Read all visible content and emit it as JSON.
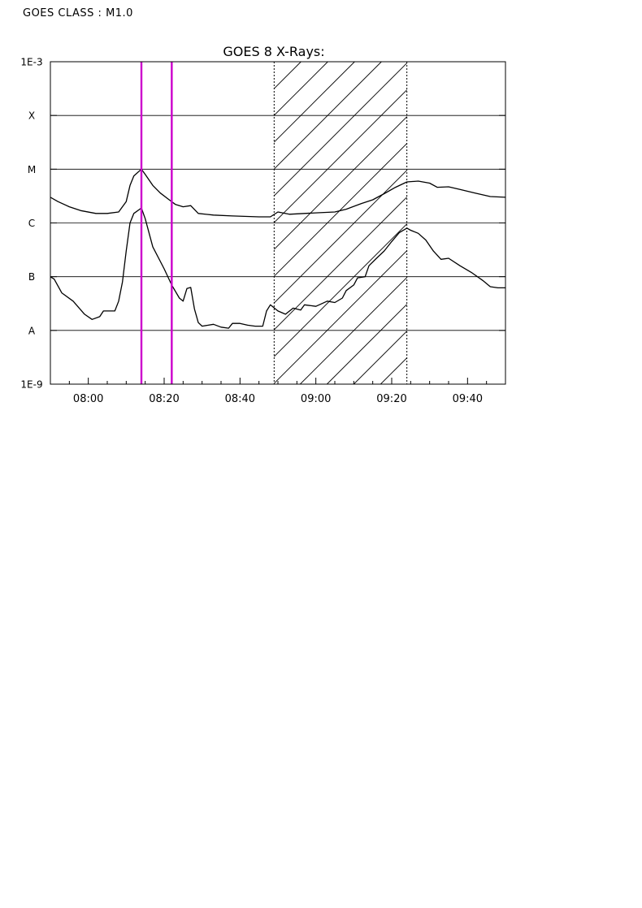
{
  "header": {
    "goes_class_label": "GOES CLASS : M1.0"
  },
  "chart_data": {
    "type": "line",
    "title": "GOES 8 X-Rays:",
    "xlabel": "",
    "ylabel": "",
    "y_scale": "log",
    "ylim": [
      1e-09,
      0.001
    ],
    "x_range": [
      "07:50",
      "09:50"
    ],
    "x_ticks": [
      "08:00",
      "08:20",
      "08:40",
      "09:00",
      "09:20",
      "09:40"
    ],
    "y_tick_labels": [
      {
        "label": "1E-3",
        "value": 0.001
      },
      {
        "label": "X",
        "value": 0.0001
      },
      {
        "label": "M",
        "value": 1e-05
      },
      {
        "label": "C",
        "value": 1e-06
      },
      {
        "label": "B",
        "value": 1e-07
      },
      {
        "label": "A",
        "value": 1e-08
      },
      {
        "label": "1E-9",
        "value": 1e-09
      }
    ],
    "grid": "horizontal at class boundaries",
    "markers": [
      {
        "time": "08:14",
        "color": "#cc00cc"
      },
      {
        "time": "08:22",
        "color": "#cc00cc"
      }
    ],
    "shaded_interval": {
      "start": "08:49",
      "end": "09:24"
    },
    "series": [
      {
        "points": [
          [
            "07:50",
            3e-06
          ],
          [
            "07:52",
            2.5e-06
          ],
          [
            "07:55",
            2e-06
          ],
          [
            "07:58",
            1.7e-06
          ],
          [
            "08:02",
            1.5e-06
          ],
          [
            "08:05",
            1.5e-06
          ],
          [
            "08:08",
            1.6e-06
          ],
          [
            "08:10",
            2.5e-06
          ],
          [
            "08:11",
            5e-06
          ],
          [
            "08:12",
            7.5e-06
          ],
          [
            "08:14",
            1e-05
          ],
          [
            "08:15",
            8e-06
          ],
          [
            "08:17",
            5e-06
          ],
          [
            "08:19",
            3.6e-06
          ],
          [
            "08:21",
            2.8e-06
          ],
          [
            "08:23",
            2.2e-06
          ],
          [
            "08:25",
            2e-06
          ],
          [
            "08:27",
            2.1e-06
          ],
          [
            "08:29",
            1.5e-06
          ],
          [
            "08:33",
            1.4e-06
          ],
          [
            "08:38",
            1.35e-06
          ],
          [
            "08:45",
            1.3e-06
          ],
          [
            "08:48",
            1.3e-06
          ],
          [
            "08:50",
            1.6e-06
          ],
          [
            "08:53",
            1.45e-06
          ],
          [
            "08:57",
            1.5e-06
          ],
          [
            "09:01",
            1.55e-06
          ],
          [
            "09:05",
            1.6e-06
          ],
          [
            "09:08",
            1.8e-06
          ],
          [
            "09:12",
            2.3e-06
          ],
          [
            "09:15",
            2.7e-06
          ],
          [
            "09:18",
            3.5e-06
          ],
          [
            "09:21",
            4.6e-06
          ],
          [
            "09:24",
            5.8e-06
          ],
          [
            "09:27",
            6e-06
          ],
          [
            "09:30",
            5.5e-06
          ],
          [
            "09:32",
            4.6e-06
          ],
          [
            "09:35",
            4.7e-06
          ],
          [
            "09:38",
            4.2e-06
          ],
          [
            "09:42",
            3.6e-06
          ],
          [
            "09:46",
            3.1e-06
          ],
          [
            "09:50",
            3e-06
          ]
        ]
      },
      {
        "points": [
          [
            "07:50",
            1e-07
          ],
          [
            "07:51",
            9e-08
          ],
          [
            "07:53",
            5e-08
          ],
          [
            "07:56",
            3.5e-08
          ],
          [
            "07:59",
            2e-08
          ],
          [
            "08:01",
            1.6e-08
          ],
          [
            "08:03",
            1.8e-08
          ],
          [
            "08:04",
            2.3e-08
          ],
          [
            "08:07",
            2.3e-08
          ],
          [
            "08:08",
            3.5e-08
          ],
          [
            "08:09",
            8e-08
          ],
          [
            "08:10",
            3e-07
          ],
          [
            "08:11",
            1e-06
          ],
          [
            "08:12",
            1.5e-06
          ],
          [
            "08:14",
            1.9e-06
          ],
          [
            "08:15",
            1.2e-06
          ],
          [
            "08:17",
            3.6e-07
          ],
          [
            "08:20",
            1.4e-07
          ],
          [
            "08:22",
            7e-08
          ],
          [
            "08:24",
            4e-08
          ],
          [
            "08:25",
            3.5e-08
          ],
          [
            "08:26",
            6e-08
          ],
          [
            "08:27",
            6.3e-08
          ],
          [
            "08:28",
            2.5e-08
          ],
          [
            "08:29",
            1.4e-08
          ],
          [
            "08:30",
            1.2e-08
          ],
          [
            "08:33",
            1.3e-08
          ],
          [
            "08:35",
            1.15e-08
          ],
          [
            "08:37",
            1.1e-08
          ],
          [
            "08:38",
            1.35e-08
          ],
          [
            "08:40",
            1.35e-08
          ],
          [
            "08:42",
            1.25e-08
          ],
          [
            "08:44",
            1.2e-08
          ],
          [
            "08:46",
            1.2e-08
          ],
          [
            "08:47",
            2.3e-08
          ],
          [
            "08:48",
            3e-08
          ],
          [
            "08:50",
            2.3e-08
          ],
          [
            "08:52",
            2e-08
          ],
          [
            "08:54",
            2.6e-08
          ],
          [
            "08:56",
            2.4e-08
          ],
          [
            "08:57",
            3e-08
          ],
          [
            "09:00",
            2.8e-08
          ],
          [
            "09:03",
            3.5e-08
          ],
          [
            "09:05",
            3.3e-08
          ],
          [
            "09:07",
            4e-08
          ],
          [
            "09:08",
            5.5e-08
          ],
          [
            "09:10",
            7e-08
          ],
          [
            "09:11",
            9.5e-08
          ],
          [
            "09:13",
            1e-07
          ],
          [
            "09:14",
            1.6e-07
          ],
          [
            "09:16",
            2.2e-07
          ],
          [
            "09:18",
            3e-07
          ],
          [
            "09:20",
            4.5e-07
          ],
          [
            "09:22",
            6.6e-07
          ],
          [
            "09:24",
            8e-07
          ],
          [
            "09:25",
            7.3e-07
          ],
          [
            "09:27",
            6.4e-07
          ],
          [
            "09:29",
            4.8e-07
          ],
          [
            "09:31",
            3e-07
          ],
          [
            "09:33",
            2.1e-07
          ],
          [
            "09:35",
            2.2e-07
          ],
          [
            "09:38",
            1.6e-07
          ],
          [
            "09:41",
            1.2e-07
          ],
          [
            "09:44",
            8.5e-08
          ],
          [
            "09:46",
            6.5e-08
          ],
          [
            "09:48",
            6.2e-08
          ],
          [
            "09:50",
            6.2e-08
          ]
        ]
      }
    ]
  }
}
